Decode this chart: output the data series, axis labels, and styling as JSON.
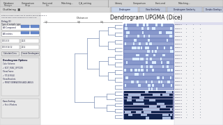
{
  "title": "Dendrogram UPGMA (Dice)",
  "subtitle": "Distance",
  "bg_color": "#c8c8c8",
  "toolbar_bg": "#d2d2d2",
  "toolbar_bg2": "#e0e0e0",
  "main_bg": "#ffffff",
  "sidebar_bg": "#e4e4e4",
  "sidebar_lower_bg": "#e8e8e8",
  "work_area_bg": "#f8f8f8",
  "tab_active_bg": "#ddeeff",
  "tab_inactive_bg": "#ccccdd",
  "dend_line_color": "#8899bb",
  "dend_label_color": "#5566aa",
  "gel_upper_bg": "#7b8dc4",
  "gel_upper_stripe": "#aabbdd",
  "gel_lower_bg": "#8899bb",
  "gel_lower_dark": "#223366",
  "gel_band_white": "#e8eaf8",
  "right_label_bg": "#f4f4f8",
  "axis_color": "#888888",
  "text_color": "#333333",
  "small_text_color": "#555566"
}
